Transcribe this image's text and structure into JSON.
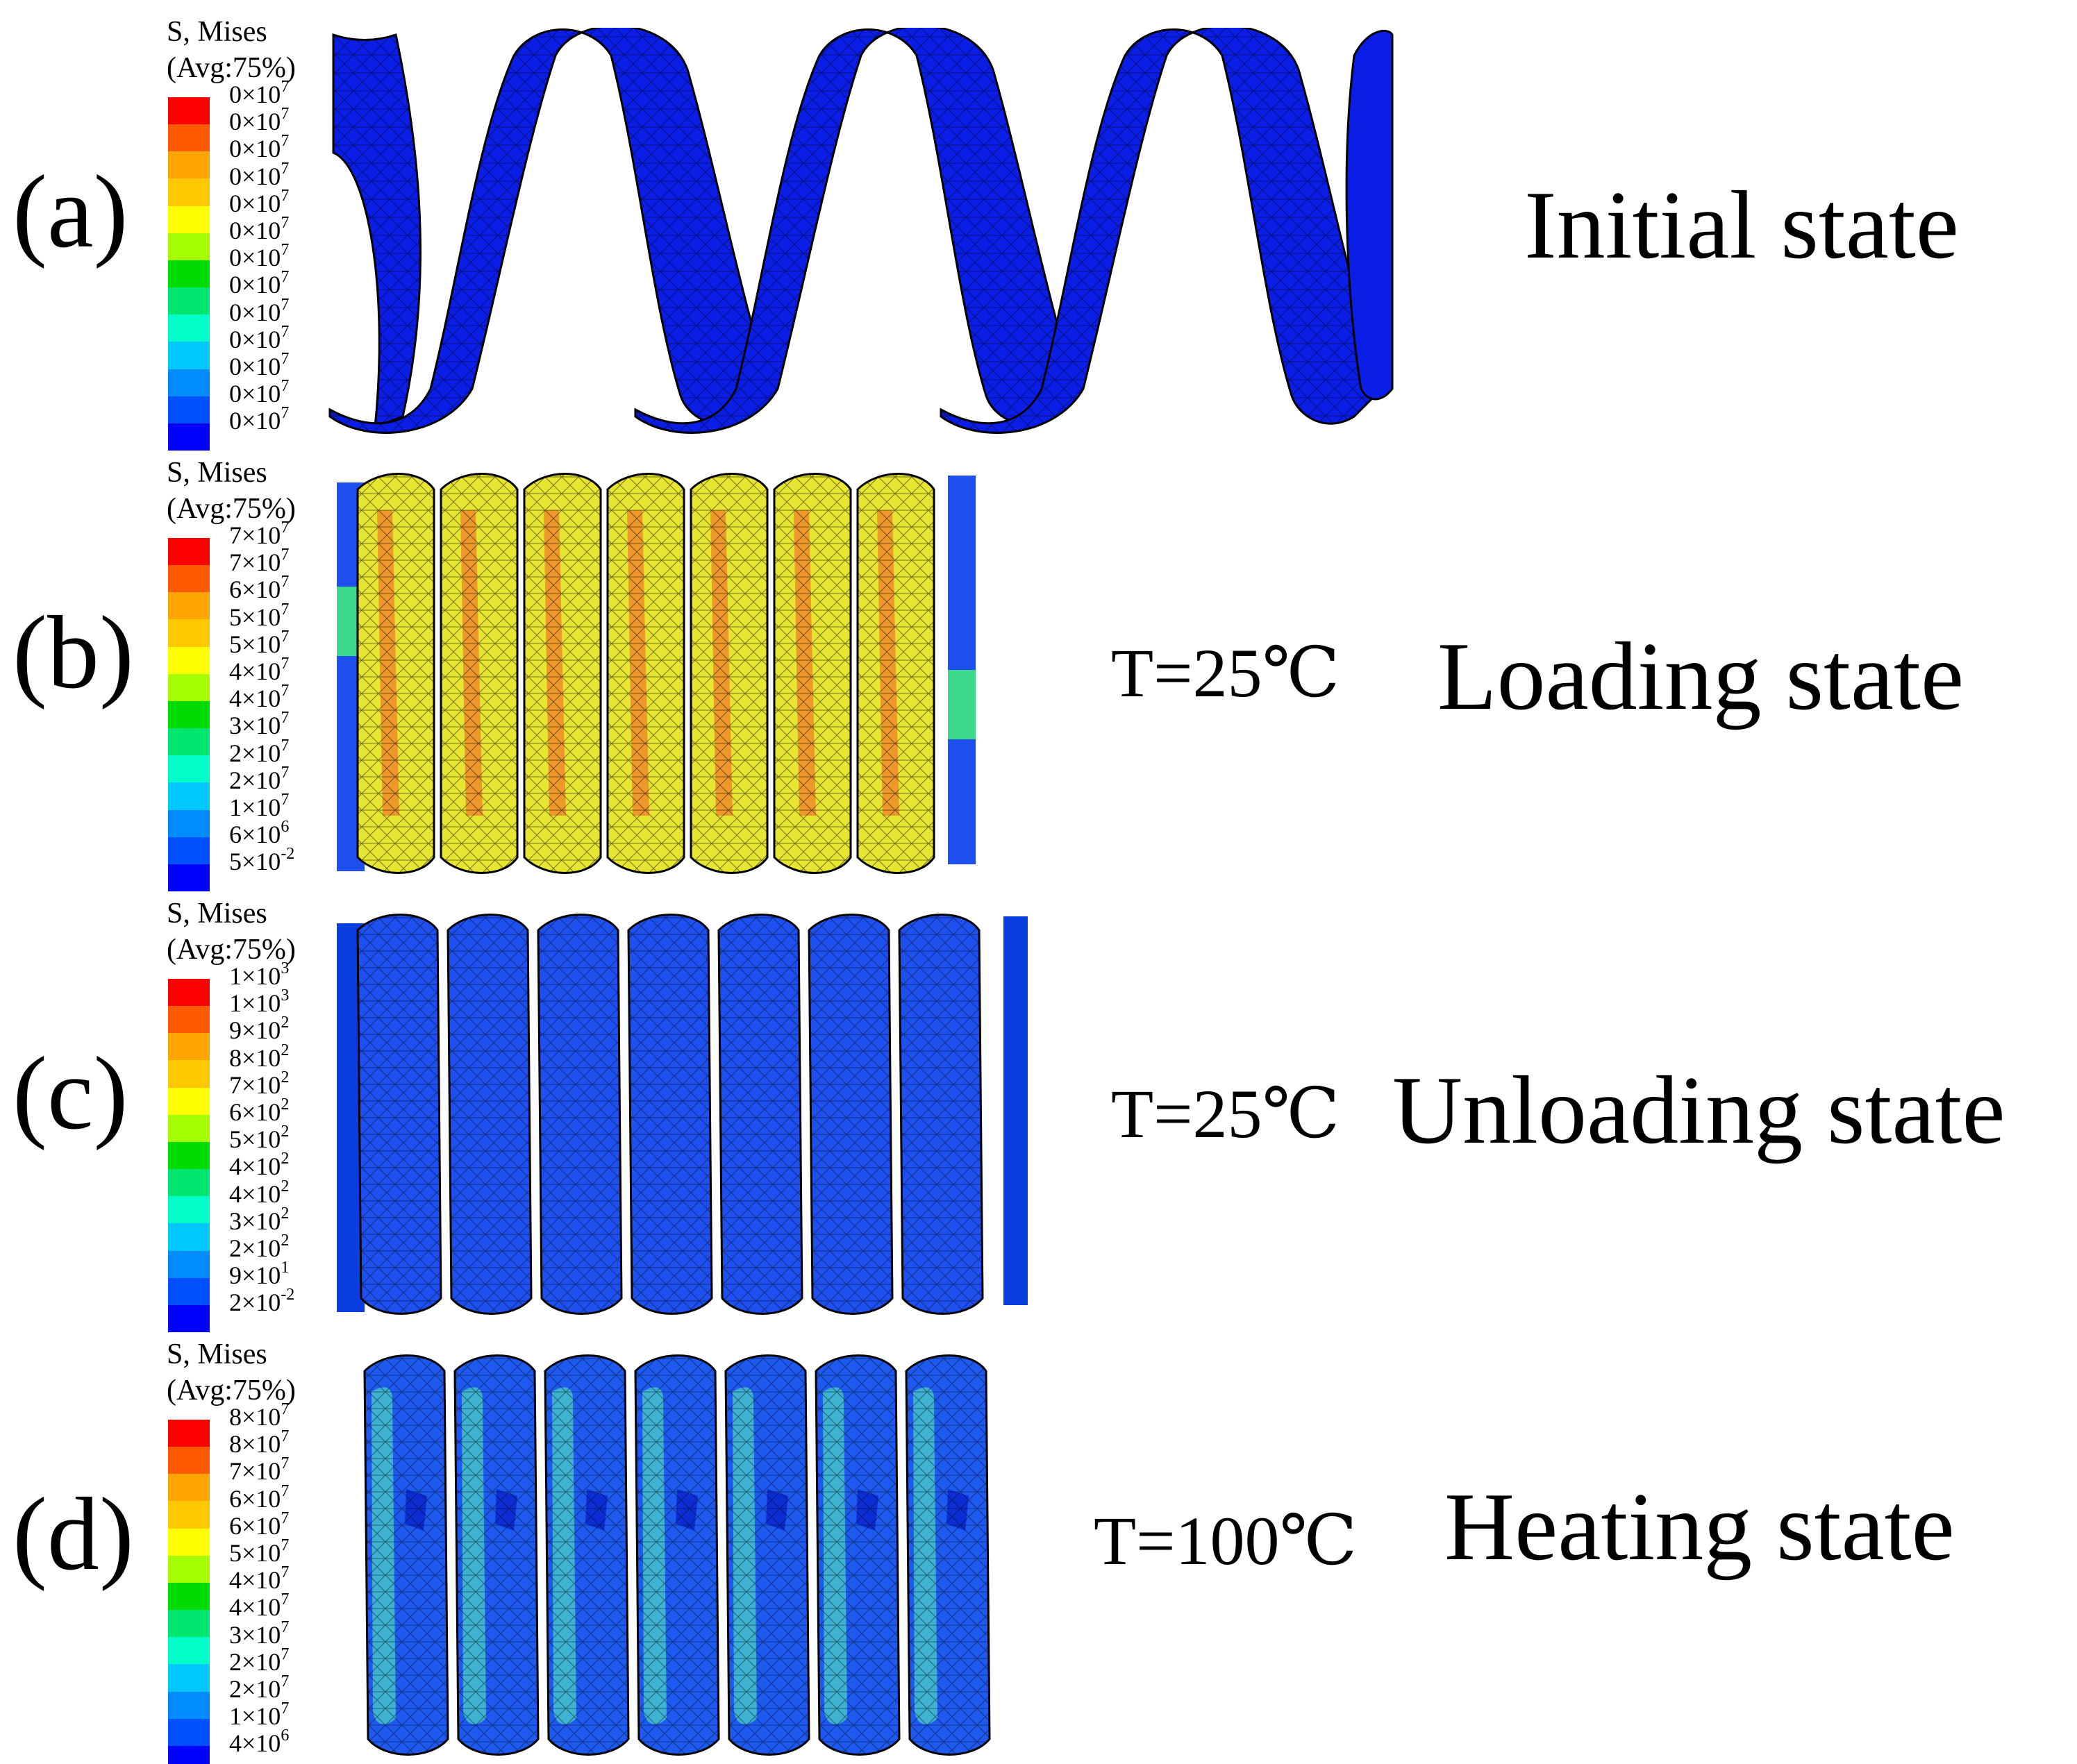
{
  "colors": {
    "contour": [
      "#ff0000",
      "#ff5a00",
      "#ffa500",
      "#ffc800",
      "#ffff00",
      "#a5ff00",
      "#00dc00",
      "#00e66e",
      "#00ffc8",
      "#00c8ff",
      "#008cff",
      "#0050ff",
      "#0000ff"
    ],
    "steel_initial": "#0a1ee6",
    "steel_loading": "#e6e632",
    "steel_unloading": "#1e50f0",
    "steel_heating": "#1e5af0",
    "mesh_line": "#000000"
  },
  "panels": [
    {
      "letter": "(a)",
      "legend_title": [
        "S, Mises",
        "(Avg:75%)"
      ],
      "legend_labels": [
        {
          "m": "0",
          "e": "7"
        },
        {
          "m": "0",
          "e": "7"
        },
        {
          "m": "0",
          "e": "7"
        },
        {
          "m": "0",
          "e": "7"
        },
        {
          "m": "0",
          "e": "7"
        },
        {
          "m": "0",
          "e": "7"
        },
        {
          "m": "0",
          "e": "7"
        },
        {
          "m": "0",
          "e": "7"
        },
        {
          "m": "0",
          "e": "7"
        },
        {
          "m": "0",
          "e": "7"
        },
        {
          "m": "0",
          "e": "7"
        },
        {
          "m": "0",
          "e": "7"
        },
        {
          "m": "0",
          "e": "7"
        }
      ],
      "temperature": "",
      "state": "Initial state"
    },
    {
      "letter": "(b)",
      "legend_title": [
        "S, Mises",
        "(Avg:75%)"
      ],
      "legend_labels": [
        {
          "m": "7",
          "e": "7"
        },
        {
          "m": "7",
          "e": "7"
        },
        {
          "m": "6",
          "e": "7"
        },
        {
          "m": "5",
          "e": "7"
        },
        {
          "m": "5",
          "e": "7"
        },
        {
          "m": "4",
          "e": "7"
        },
        {
          "m": "4",
          "e": "7"
        },
        {
          "m": "3",
          "e": "7"
        },
        {
          "m": "2",
          "e": "7"
        },
        {
          "m": "2",
          "e": "7"
        },
        {
          "m": "1",
          "e": "7"
        },
        {
          "m": "6",
          "e": "6"
        },
        {
          "m": "5",
          "e": "-2"
        }
      ],
      "temperature": "T=25℃",
      "state": "Loading state"
    },
    {
      "letter": "(c)",
      "legend_title": [
        "S, Mises",
        "(Avg:75%)"
      ],
      "legend_labels": [
        {
          "m": "1",
          "e": "3"
        },
        {
          "m": "1",
          "e": "3"
        },
        {
          "m": "9",
          "e": "2"
        },
        {
          "m": "8",
          "e": "2"
        },
        {
          "m": "7",
          "e": "2"
        },
        {
          "m": "6",
          "e": "2"
        },
        {
          "m": "5",
          "e": "2"
        },
        {
          "m": "4",
          "e": "2"
        },
        {
          "m": "4",
          "e": "2"
        },
        {
          "m": "3",
          "e": "2"
        },
        {
          "m": "2",
          "e": "2"
        },
        {
          "m": "9",
          "e": "1"
        },
        {
          "m": "2",
          "e": "-2"
        }
      ],
      "temperature": "T=25℃",
      "state": "Unloading state"
    },
    {
      "letter": "(d)",
      "legend_title": [
        "S, Mises",
        "(Avg:75%)"
      ],
      "legend_labels": [
        {
          "m": "8",
          "e": "7"
        },
        {
          "m": "8",
          "e": "7"
        },
        {
          "m": "7",
          "e": "7"
        },
        {
          "m": "6",
          "e": "7"
        },
        {
          "m": "6",
          "e": "7"
        },
        {
          "m": "5",
          "e": "7"
        },
        {
          "m": "4",
          "e": "7"
        },
        {
          "m": "4",
          "e": "7"
        },
        {
          "m": "3",
          "e": "7"
        },
        {
          "m": "2",
          "e": "7"
        },
        {
          "m": "2",
          "e": "7"
        },
        {
          "m": "1",
          "e": "7"
        },
        {
          "m": "4",
          "e": "6"
        }
      ],
      "temperature": "T=100℃",
      "state": "Heating state"
    }
  ]
}
